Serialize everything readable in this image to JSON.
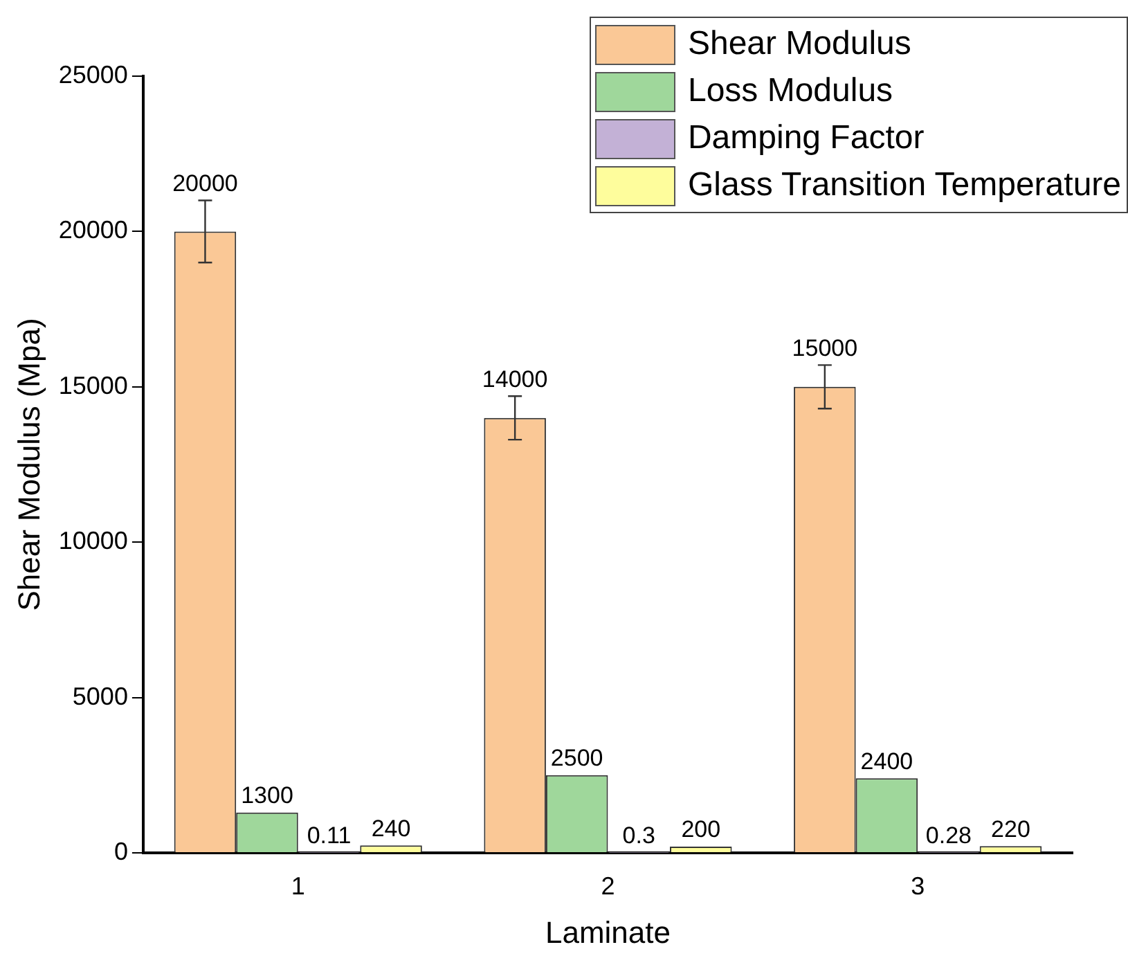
{
  "chart_data": {
    "type": "bar",
    "xlabel": "Laminate",
    "ylabel": "Shear Modulus (Mpa)",
    "categories": [
      "1",
      "2",
      "3"
    ],
    "series": [
      {
        "name": "Shear Modulus",
        "color": "#fac896",
        "values": [
          20000,
          14000,
          15000
        ],
        "errors": [
          1000,
          700,
          700
        ]
      },
      {
        "name": "Loss Modulus",
        "color": "#9fd79b",
        "values": [
          1300,
          2500,
          2400
        ]
      },
      {
        "name": "Damping Factor",
        "color": "#c3b1d6",
        "values": [
          0.11,
          0.3,
          0.28
        ]
      },
      {
        "name": "Glass Transition Temperature",
        "color": "#fefd9c",
        "values": [
          240,
          200,
          220
        ]
      }
    ],
    "ylim": [
      0,
      25000
    ],
    "yticks": [
      0,
      5000,
      10000,
      15000,
      20000,
      25000
    ],
    "grid": false,
    "legend": "top right",
    "data_labels": true
  }
}
